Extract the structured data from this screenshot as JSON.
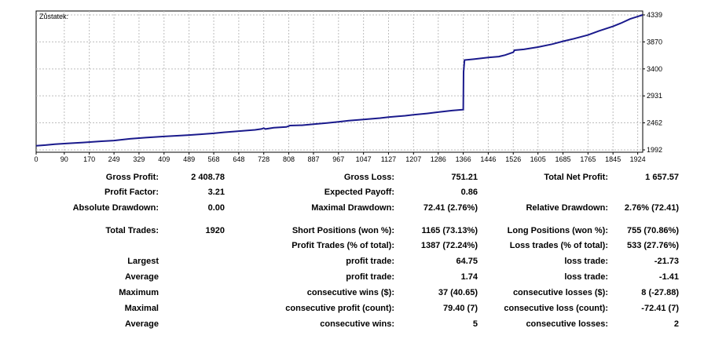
{
  "chart_data": {
    "type": "line",
    "title": "Zůstatek:",
    "series": [
      {
        "color": "#1a1a8c",
        "x": [
          0,
          30,
          60,
          100,
          150,
          200,
          249,
          300,
          350,
          409,
          450,
          489,
          530,
          568,
          600,
          648,
          700,
          720,
          728,
          733,
          760,
          800,
          808,
          812,
          850,
          887,
          930,
          967,
          1000,
          1047,
          1100,
          1127,
          1180,
          1207,
          1250,
          1286,
          1330,
          1364,
          1366,
          1367,
          1370,
          1400,
          1446,
          1480,
          1500,
          1526,
          1530,
          1560,
          1605,
          1650,
          1685,
          1720,
          1765,
          1800,
          1845,
          1870,
          1900,
          1924,
          1940
        ],
        "y": [
          2064,
          2075,
          2090,
          2105,
          2120,
          2140,
          2155,
          2185,
          2205,
          2225,
          2238,
          2250,
          2265,
          2280,
          2298,
          2318,
          2340,
          2355,
          2370,
          2355,
          2378,
          2390,
          2405,
          2415,
          2420,
          2440,
          2460,
          2480,
          2500,
          2522,
          2545,
          2562,
          2585,
          2602,
          2625,
          2648,
          2675,
          2690,
          2690,
          3350,
          3555,
          3570,
          3598,
          3615,
          3640,
          3690,
          3725,
          3740,
          3780,
          3830,
          3880,
          3925,
          3990,
          4060,
          4140,
          4195,
          4270,
          4310,
          4339
        ]
      }
    ],
    "x_ticks": [
      "0",
      "90",
      "170",
      "249",
      "329",
      "409",
      "489",
      "568",
      "648",
      "728",
      "808",
      "887",
      "967",
      "1047",
      "1127",
      "1207",
      "1286",
      "1366",
      "1446",
      "1526",
      "1605",
      "1685",
      "1765",
      "1845",
      "1924"
    ],
    "x_tick_values": [
      0,
      90,
      170,
      249,
      329,
      409,
      489,
      568,
      648,
      728,
      808,
      887,
      967,
      1047,
      1127,
      1207,
      1286,
      1366,
      1446,
      1526,
      1605,
      1685,
      1765,
      1845,
      1924
    ],
    "y_ticks": [
      "4339",
      "3870",
      "3400",
      "2931",
      "2462",
      "1992"
    ],
    "y_tick_values": [
      4339,
      3870,
      3400,
      2931,
      2462,
      1992
    ],
    "xlim": [
      0,
      1940
    ],
    "ylim": [
      1992,
      4339
    ],
    "grid": true
  },
  "stats": {
    "gross_profit_label": "Gross Profit:",
    "gross_profit": "2 408.78",
    "gross_loss_label": "Gross Loss:",
    "gross_loss": "751.21",
    "total_net_profit_label": "Total Net Profit:",
    "total_net_profit": "1 657.57",
    "profit_factor_label": "Profit Factor:",
    "profit_factor": "3.21",
    "expected_payoff_label": "Expected Payoff:",
    "expected_payoff": "0.86",
    "absolute_drawdown_label": "Absolute Drawdown:",
    "absolute_drawdown": "0.00",
    "maximal_drawdown_label": "Maximal Drawdown:",
    "maximal_drawdown": "72.41 (2.76%)",
    "relative_drawdown_label": "Relative Drawdown:",
    "relative_drawdown": "2.76% (72.41)",
    "total_trades_label": "Total Trades:",
    "total_trades": "1920",
    "short_positions_label": "Short Positions (won %):",
    "short_positions": "1165 (73.13%)",
    "long_positions_label": "Long Positions (won %):",
    "long_positions": "755 (70.86%)",
    "profit_trades_label": "Profit Trades (% of total):",
    "profit_trades": "1387 (72.24%)",
    "loss_trades_label": "Loss trades (% of total):",
    "loss_trades": "533 (27.76%)",
    "largest_label": "Largest",
    "largest_profit_label": "profit trade:",
    "largest_profit": "64.75",
    "largest_loss_label": "loss trade:",
    "largest_loss": "-21.73",
    "average_label": "Average",
    "average_profit_label": "profit trade:",
    "average_profit": "1.74",
    "average_loss_label": "loss trade:",
    "average_loss": "-1.41",
    "maximum_label": "Maximum",
    "max_consec_wins_label": "consecutive wins ($):",
    "max_consec_wins": "37 (40.65)",
    "max_consec_losses_label": "consecutive losses ($):",
    "max_consec_losses": "8 (-27.88)",
    "maximal_label": "Maximal",
    "maximal_consec_profit_label": "consecutive profit (count):",
    "maximal_consec_profit": "79.40 (7)",
    "maximal_consec_loss_label": "consecutive loss (count):",
    "maximal_consec_loss": "-72.41 (7)",
    "average2_label": "Average",
    "avg_consec_wins_label": "consecutive wins:",
    "avg_consec_wins": "5",
    "avg_consec_losses_label": "consecutive losses:",
    "avg_consec_losses": "2"
  }
}
